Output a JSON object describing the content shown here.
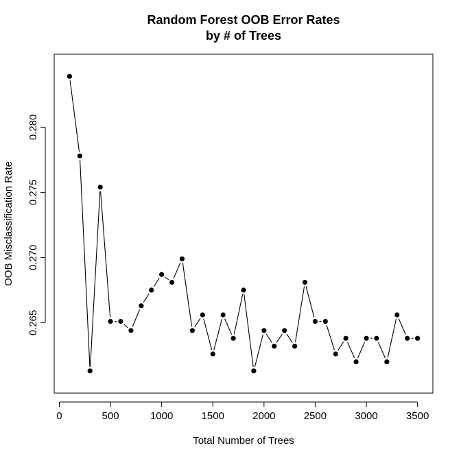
{
  "chart_data": {
    "type": "line",
    "title_line1": "Random Forest OOB Error Rates",
    "title_line2": "by # of Trees",
    "xlabel": "Total Number of Trees",
    "ylabel": "OOB Misclassification Rate",
    "xlim": [
      -50,
      3650
    ],
    "ylim": [
      0.2596,
      0.2856
    ],
    "x_ticks": [
      0,
      500,
      1000,
      1500,
      2000,
      2500,
      3000,
      3500
    ],
    "x_tick_labels": [
      "0",
      "500",
      "1000",
      "1500",
      "2000",
      "2500",
      "3000",
      "3500"
    ],
    "y_ticks": [
      0.265,
      0.27,
      0.275,
      0.28
    ],
    "y_tick_labels": [
      "0.265",
      "0.270",
      "0.275",
      "0.280"
    ],
    "grid": false,
    "legend": "none",
    "color": "#000000",
    "x": [
      100,
      200,
      300,
      400,
      500,
      600,
      700,
      800,
      900,
      1000,
      1100,
      1200,
      1300,
      1400,
      1500,
      1600,
      1700,
      1800,
      1900,
      2000,
      2100,
      2200,
      2300,
      2400,
      2500,
      2600,
      2700,
      2800,
      2900,
      3000,
      3100,
      3200,
      3300,
      3400,
      3500
    ],
    "y": [
      0.2839,
      0.2778,
      0.2613,
      0.2754,
      0.2651,
      0.2651,
      0.2644,
      0.2663,
      0.2675,
      0.2687,
      0.2681,
      0.2699,
      0.2644,
      0.2656,
      0.2626,
      0.2656,
      0.2638,
      0.2675,
      0.2613,
      0.2644,
      0.2632,
      0.2644,
      0.2632,
      0.2681,
      0.2651,
      0.2651,
      0.2626,
      0.2638,
      0.262,
      0.2638,
      0.2638,
      0.262,
      0.2656,
      0.2638,
      0.2638
    ]
  }
}
